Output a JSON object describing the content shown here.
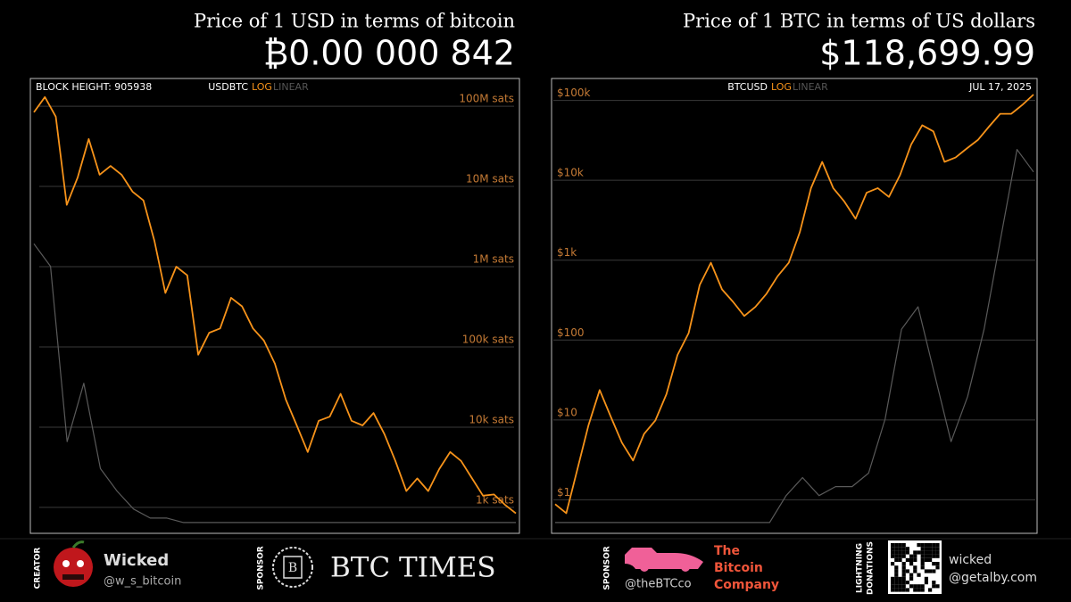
{
  "chart_data": [
    {
      "type": "line",
      "title": "Price of 1 USD in terms of bitcoin",
      "headline": "₿0.00 000 842",
      "corner_label": "BLOCK HEIGHT: 905938",
      "pair": "USDBTC",
      "scale_options": [
        "LOG",
        "LINEAR"
      ],
      "log_scale": true,
      "grid": true,
      "ylim": [
        500,
        200000000
      ],
      "yticks": [
        {
          "value": 1000,
          "label": "1k sats"
        },
        {
          "value": 10000,
          "label": "10k sats"
        },
        {
          "value": 100000,
          "label": "100k sats"
        },
        {
          "value": 1000000,
          "label": "1M sats"
        },
        {
          "value": 10000000,
          "label": "10M sats"
        },
        {
          "value": 100000000,
          "label": "100M sats"
        }
      ],
      "y2lim": [
        0,
        100
      ],
      "series": [
        {
          "color": "#f7931a",
          "values": [
            84000000,
            130000000,
            74000000,
            5900000,
            13000000,
            39000000,
            14000000,
            18000000,
            14000000,
            8600000,
            6700000,
            2100000,
            470000,
            1000000,
            780000,
            80000,
            150000,
            170000,
            410000,
            320000,
            170000,
            120000,
            62000,
            22000,
            10500,
            4900,
            12000,
            13500,
            26000,
            12000,
            10500,
            15000,
            8200,
            3800,
            1600,
            2300,
            1600,
            3000,
            4900,
            3800,
            2300,
            1400,
            1450,
            1080,
            842
          ]
        },
        {
          "color": "#5a5a5a",
          "axis": "y2",
          "values": [
            64,
            59,
            20,
            33,
            14,
            9,
            5,
            3,
            3,
            2,
            2,
            2,
            2,
            2,
            2,
            2,
            2,
            2,
            2,
            2,
            2,
            2,
            2,
            2,
            2,
            2,
            2,
            2,
            2,
            2
          ]
        }
      ]
    },
    {
      "type": "line",
      "title": "Price of 1 BTC in terms of US dollars",
      "headline": "$118,699.99",
      "date": "JUL 17, 2025",
      "pair": "BTCUSD",
      "scale_options": [
        "LOG",
        "LINEAR"
      ],
      "log_scale": true,
      "grid": true,
      "ylim": [
        0.4,
        170000
      ],
      "yticks": [
        {
          "value": 1,
          "label": "$1"
        },
        {
          "value": 10,
          "label": "$10"
        },
        {
          "value": 100,
          "label": "$100"
        },
        {
          "value": 1000,
          "label": "$1k"
        },
        {
          "value": 10000,
          "label": "$10k"
        },
        {
          "value": 100000,
          "label": "$100k"
        }
      ],
      "y2lim": [
        0,
        100
      ],
      "series": [
        {
          "color": "#f7931a",
          "values": [
            0.88,
            0.68,
            2.4,
            8.6,
            23.7,
            11,
            5.2,
            3.1,
            6.7,
            9.8,
            21,
            65,
            122,
            490,
            930,
            430,
            300,
            200,
            260,
            380,
            630,
            930,
            2250,
            8000,
            17000,
            8000,
            5400,
            3300,
            7000,
            8000,
            6200,
            11600,
            28000,
            49000,
            41000,
            17000,
            19300,
            25000,
            32000,
            47000,
            68000,
            68000,
            88000,
            118699.99
          ]
        },
        {
          "color": "#5a5a5a",
          "axis": "y2",
          "values": [
            2,
            2,
            2,
            2,
            2,
            2,
            2,
            2,
            2,
            2,
            2,
            2,
            2,
            2,
            8,
            12,
            8,
            10,
            10,
            13,
            25,
            45,
            50,
            35,
            20,
            30,
            45,
            65,
            85,
            80
          ]
        }
      ]
    }
  ],
  "footer": {
    "creator_label": "CREATOR",
    "creator_name": "Wicked",
    "creator_handle": "@w_s_bitcoin",
    "sponsor_label": "SPONSOR",
    "sponsor_name": "BTC TIMES",
    "sponsor2_label": "SPONSOR",
    "sponsor2_handle": "@theBTCco",
    "sponsor2_name": [
      "The",
      "Bitcoin",
      "Company"
    ],
    "donations_label": [
      "LIGHTNING",
      "DONATIONS"
    ],
    "donation_name": "wicked",
    "donation_address": "@getalby.com"
  }
}
